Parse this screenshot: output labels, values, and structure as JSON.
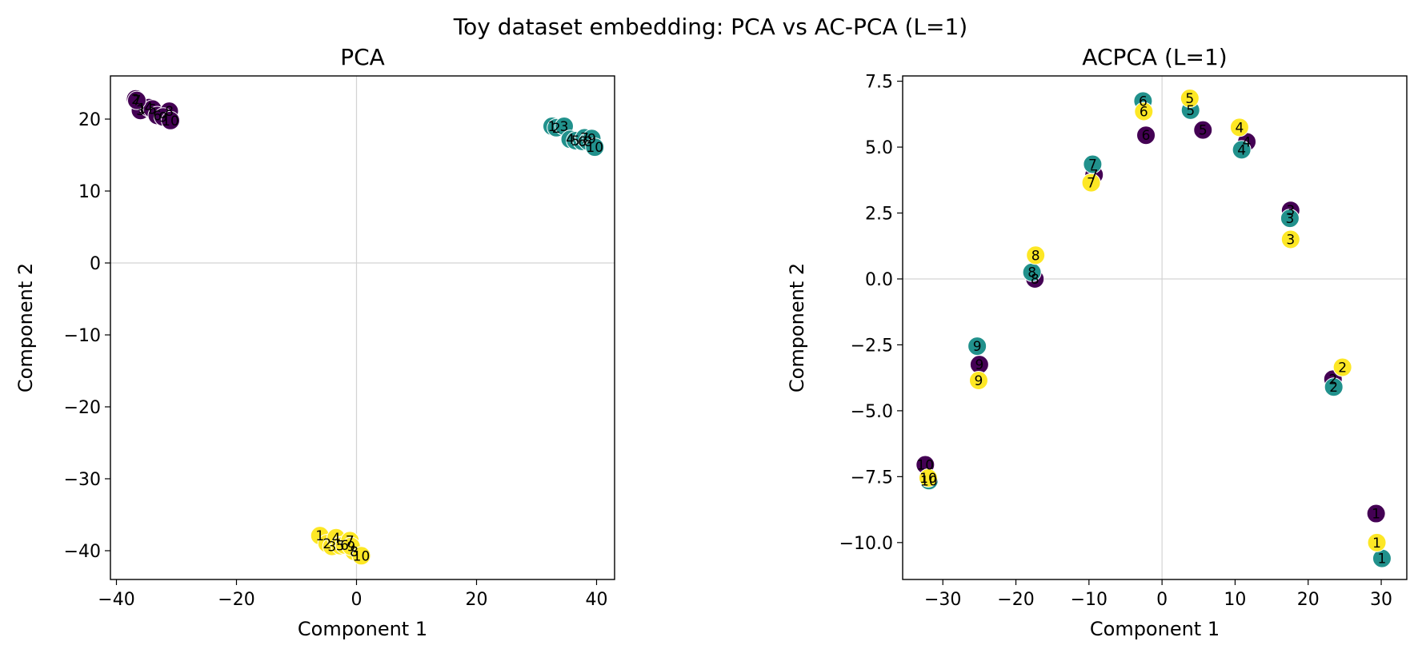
{
  "figure": {
    "title": "Toy dataset embedding: PCA vs AC-PCA (L=1)"
  },
  "colors": {
    "group_0": "#440154",
    "group_1": "#21918c",
    "group_2": "#fde725",
    "zero_line": "#d3d3d3"
  },
  "chart_data": [
    {
      "type": "scatter",
      "title": "PCA",
      "xlabel": "Component 1",
      "ylabel": "Component 2",
      "xlim": [
        -41,
        43
      ],
      "ylim": [
        -44,
        26
      ],
      "xticks": [
        -40,
        -20,
        0,
        20,
        40
      ],
      "yticks": [
        -40,
        -30,
        -20,
        -10,
        0,
        10,
        20
      ],
      "grid": false,
      "zero_lines": true,
      "series": [
        {
          "group": 0,
          "labels": [
            "1",
            "2",
            "3",
            "4",
            "5",
            "6",
            "7",
            "8",
            "9",
            "10"
          ],
          "x": [
            -35.8,
            -36.8,
            -36.0,
            -34.6,
            -34.0,
            -33.2,
            -36.6,
            -31.2,
            -32.2,
            -31.0
          ],
          "y": [
            21.5,
            22.8,
            21.2,
            21.6,
            21.4,
            20.5,
            22.6,
            21.1,
            20.3,
            19.8
          ]
        },
        {
          "group": 1,
          "labels": [
            "1",
            "2",
            "3",
            "4",
            "5",
            "6",
            "7",
            "8",
            "9",
            "10"
          ],
          "x": [
            32.6,
            33.3,
            34.6,
            35.6,
            36.5,
            37.6,
            38.0,
            38.6,
            39.2,
            39.7
          ],
          "y": [
            19.0,
            18.8,
            19.0,
            17.2,
            17.0,
            16.9,
            17.4,
            16.9,
            17.3,
            16.1
          ]
        },
        {
          "group": 2,
          "labels": [
            "1",
            "2",
            "3",
            "4",
            "5",
            "6",
            "7",
            "8",
            "9",
            "10"
          ],
          "x": [
            -6.1,
            -4.9,
            -4.1,
            -3.4,
            -2.7,
            -2.0,
            -1.1,
            -0.4,
            -0.9,
            0.8
          ],
          "y": [
            -37.9,
            -39.0,
            -39.4,
            -38.2,
            -39.3,
            -39.2,
            -38.6,
            -40.1,
            -39.4,
            -40.7
          ]
        }
      ]
    },
    {
      "type": "scatter",
      "title": "ACPCA (L=1)",
      "xlabel": "Component 1",
      "ylabel": "Component 2",
      "xlim": [
        -35.5,
        33.5
      ],
      "ylim": [
        -11.4,
        7.7
      ],
      "xticks": [
        -30,
        -20,
        -10,
        0,
        10,
        20,
        30
      ],
      "yticks": [
        -10.0,
        -7.5,
        -5.0,
        -2.5,
        0.0,
        2.5,
        5.0,
        7.5
      ],
      "grid": false,
      "zero_lines": true,
      "series": [
        {
          "group": 0,
          "labels": [
            "1",
            "2",
            "3",
            "4",
            "5",
            "6",
            "7",
            "8",
            "9",
            "10"
          ],
          "x": [
            29.3,
            23.4,
            17.6,
            11.6,
            5.6,
            -2.2,
            -9.3,
            -17.4,
            -25.0,
            -32.4
          ],
          "y": [
            -8.9,
            -3.8,
            2.6,
            5.2,
            5.65,
            5.45,
            3.95,
            0.0,
            -3.25,
            -7.05
          ]
        },
        {
          "group": 1,
          "labels": [
            "1",
            "2",
            "3",
            "4",
            "5",
            "6",
            "7",
            "8",
            "9",
            "10"
          ],
          "x": [
            30.1,
            23.5,
            17.5,
            10.9,
            3.9,
            -2.6,
            -9.5,
            -17.8,
            -25.3,
            -31.9
          ],
          "y": [
            -10.6,
            -4.1,
            2.3,
            4.9,
            6.4,
            6.75,
            4.35,
            0.25,
            -2.55,
            -7.65
          ]
        },
        {
          "group": 2,
          "labels": [
            "1",
            "2",
            "3",
            "4",
            "5",
            "6",
            "7",
            "8",
            "9",
            "10"
          ],
          "x": [
            29.4,
            24.7,
            17.6,
            10.6,
            3.8,
            -2.5,
            -9.7,
            -17.3,
            -25.1,
            -32.0
          ],
          "y": [
            -10.0,
            -3.35,
            1.5,
            5.75,
            6.85,
            6.35,
            3.65,
            0.9,
            -3.85,
            -7.55
          ]
        }
      ]
    }
  ]
}
